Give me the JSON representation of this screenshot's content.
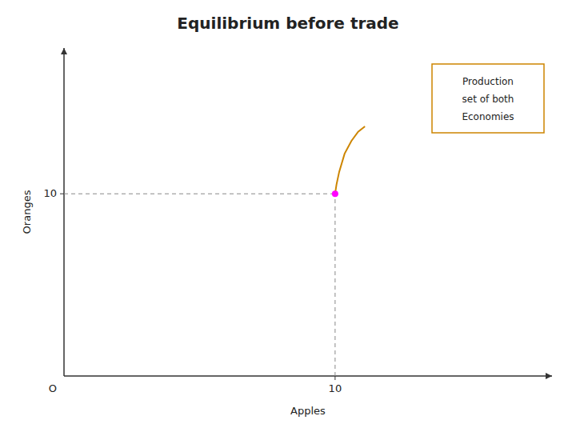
{
  "chart_data": {
    "type": "line",
    "title": "Equilibrium before trade",
    "x_label": "Apples",
    "y_label": "Oranges",
    "x": [
      10.0,
      10.05,
      10.15,
      10.35,
      10.6,
      10.85,
      11.1
    ],
    "series": [
      {
        "color": "#CD8500",
        "values": [
          10.0,
          10.5,
          11.2,
          12.2,
          12.9,
          13.4,
          13.7
        ]
      }
    ],
    "equilibrium": {
      "x": 10,
      "y": 10,
      "color": "#FF00FF"
    },
    "origin_label": "O",
    "text_box": [
      "Production",
      "set of both",
      "Economies"
    ],
    "xlim": [
      0,
      18
    ],
    "ylim": [
      0,
      18
    ],
    "xticks": [
      10
    ],
    "yticks": [
      10
    ],
    "grid": false
  }
}
